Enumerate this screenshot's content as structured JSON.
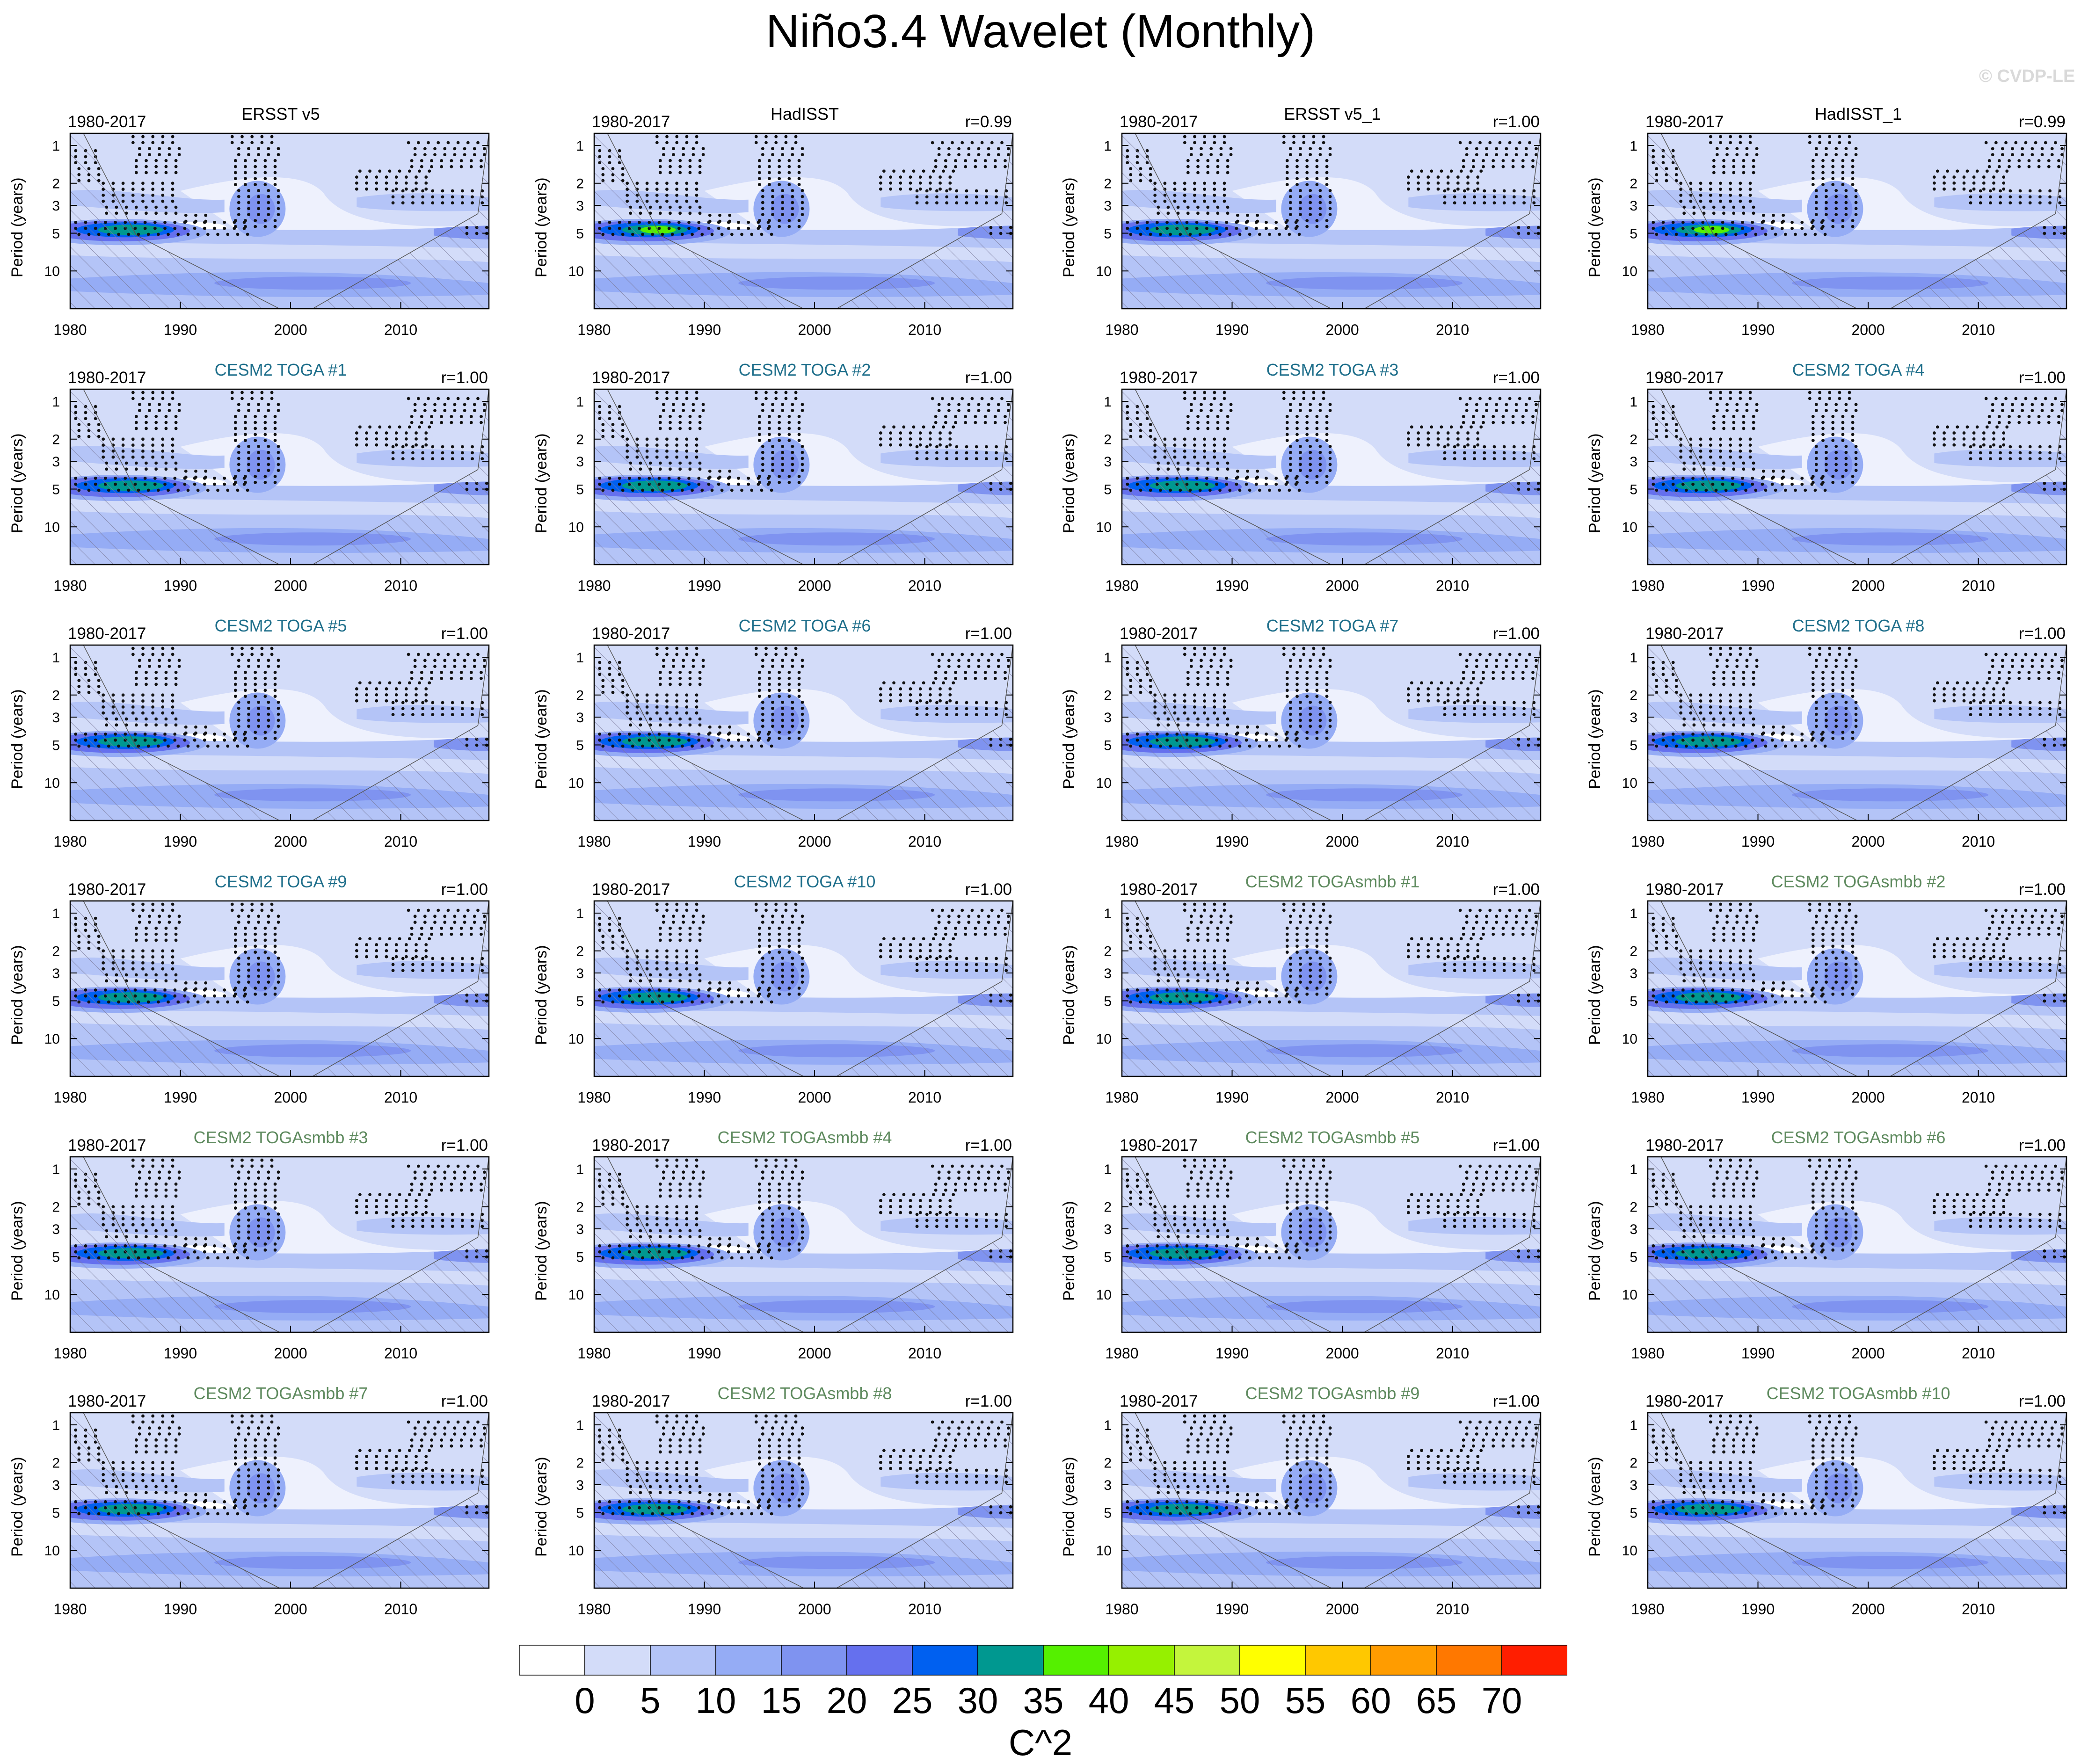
{
  "title": "Niño3.4 Wavelet (Monthly)",
  "watermark": "© CVDP-LE",
  "period_label": "1980-2017",
  "ylabel": "Period (years)",
  "xticks": [
    "1980",
    "1990",
    "2000",
    "2010"
  ],
  "yticks": [
    "1",
    "2",
    "3",
    "5",
    "10"
  ],
  "panels": [
    {
      "name": "ERSST v5",
      "corr": "",
      "kind": "ref"
    },
    {
      "name": "HadISST",
      "corr": "r=0.99",
      "kind": "ref"
    },
    {
      "name": "ERSST v5_1",
      "corr": "r=1.00",
      "kind": "ref"
    },
    {
      "name": "HadISST_1",
      "corr": "r=0.99",
      "kind": "ref"
    },
    {
      "name": "CESM2 TOGA #1",
      "corr": "r=1.00",
      "kind": "toga"
    },
    {
      "name": "CESM2 TOGA #2",
      "corr": "r=1.00",
      "kind": "toga"
    },
    {
      "name": "CESM2 TOGA #3",
      "corr": "r=1.00",
      "kind": "toga"
    },
    {
      "name": "CESM2 TOGA #4",
      "corr": "r=1.00",
      "kind": "toga"
    },
    {
      "name": "CESM2 TOGA #5",
      "corr": "r=1.00",
      "kind": "toga"
    },
    {
      "name": "CESM2 TOGA #6",
      "corr": "r=1.00",
      "kind": "toga"
    },
    {
      "name": "CESM2 TOGA #7",
      "corr": "r=1.00",
      "kind": "toga"
    },
    {
      "name": "CESM2 TOGA #8",
      "corr": "r=1.00",
      "kind": "toga"
    },
    {
      "name": "CESM2 TOGA #9",
      "corr": "r=1.00",
      "kind": "toga"
    },
    {
      "name": "CESM2 TOGA #10",
      "corr": "r=1.00",
      "kind": "toga"
    },
    {
      "name": "CESM2 TOGAsmbb #1",
      "corr": "r=1.00",
      "kind": "smbb"
    },
    {
      "name": "CESM2 TOGAsmbb #2",
      "corr": "r=1.00",
      "kind": "smbb"
    },
    {
      "name": "CESM2 TOGAsmbb #3",
      "corr": "r=1.00",
      "kind": "smbb"
    },
    {
      "name": "CESM2 TOGAsmbb #4",
      "corr": "r=1.00",
      "kind": "smbb"
    },
    {
      "name": "CESM2 TOGAsmbb #5",
      "corr": "r=1.00",
      "kind": "smbb"
    },
    {
      "name": "CESM2 TOGAsmbb #6",
      "corr": "r=1.00",
      "kind": "smbb"
    },
    {
      "name": "CESM2 TOGAsmbb #7",
      "corr": "r=1.00",
      "kind": "smbb"
    },
    {
      "name": "CESM2 TOGAsmbb #8",
      "corr": "r=1.00",
      "kind": "smbb"
    },
    {
      "name": "CESM2 TOGAsmbb #9",
      "corr": "r=1.00",
      "kind": "smbb"
    },
    {
      "name": "CESM2 TOGAsmbb #10",
      "corr": "r=1.00",
      "kind": "smbb"
    }
  ],
  "colorbar": {
    "labels": [
      "0",
      "5",
      "10",
      "15",
      "20",
      "25",
      "30",
      "35",
      "40",
      "45",
      "50",
      "55",
      "60",
      "65",
      "70"
    ],
    "colors": [
      "#ffffff",
      "#d3dcf9",
      "#b4c4f7",
      "#95acf5",
      "#7f93f0",
      "#6570ee",
      "#0060f0",
      "#009890",
      "#55f000",
      "#96f000",
      "#c4f53c",
      "#ffff00",
      "#ffc800",
      "#ff9c00",
      "#ff7800",
      "#ff1e00"
    ],
    "units": "C^2"
  },
  "chart_data": {
    "type": "heatmap",
    "title": "Niño3.4 Wavelet (Monthly)",
    "ylabel": "Period (years)",
    "xlim": [
      1980,
      2018
    ],
    "ylim_years": [
      0.8,
      20
    ],
    "y_scale": "log",
    "ylim_reversed": true,
    "levels": [
      0,
      5,
      10,
      15,
      20,
      25,
      30,
      35,
      40,
      45,
      50,
      55,
      60,
      65,
      70
    ],
    "units": "C^2",
    "grid": false,
    "stippling": "significant power",
    "hatching": "cone of influence"
  }
}
